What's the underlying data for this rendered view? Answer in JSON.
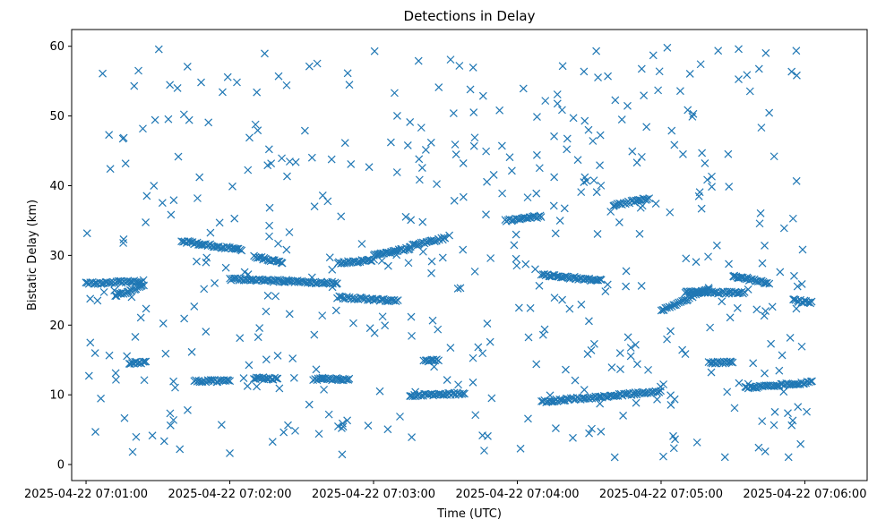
{
  "chart_data": {
    "type": "scatter",
    "title": "Detections in Delay",
    "xlabel": "Time (UTC)",
    "ylabel": "Bistatic Delay (km)",
    "marker": "x",
    "color": "#1f77b4",
    "grid": false,
    "xlim": [
      "2025-04-22 07:00:54",
      "2025-04-22 07:06:26"
    ],
    "ylim": [
      -2.3,
      62.4
    ],
    "xticks": [
      {
        "t": "2025-04-22 07:01:00",
        "label": "2025-04-22 07:01:00"
      },
      {
        "t": "2025-04-22 07:02:00",
        "label": "2025-04-22 07:02:00"
      },
      {
        "t": "2025-04-22 07:03:00",
        "label": "2025-04-22 07:03:00"
      },
      {
        "t": "2025-04-22 07:04:00",
        "label": "2025-04-22 07:04:00"
      },
      {
        "t": "2025-04-22 07:05:00",
        "label": "2025-04-22 07:05:00"
      },
      {
        "t": "2025-04-22 07:06:00",
        "label": "2025-04-22 07:06:00"
      }
    ],
    "yticks": [
      0,
      10,
      20,
      30,
      40,
      50,
      60
    ],
    "tracks": [
      {
        "x_start": "2025-04-22 07:01:00",
        "x_end": "2025-04-22 07:01:24",
        "y_start": 26.0,
        "y_end": 26.3
      },
      {
        "x_start": "2025-04-22 07:01:12",
        "x_end": "2025-04-22 07:01:24",
        "y_start": 24.2,
        "y_end": 25.6
      },
      {
        "x_start": "2025-04-22 07:01:18",
        "x_end": "2025-04-22 07:01:25",
        "y_start": 14.6,
        "y_end": 14.6
      },
      {
        "x_start": "2025-04-22 07:01:40",
        "x_end": "2025-04-22 07:02:05",
        "y_start": 32.0,
        "y_end": 30.8
      },
      {
        "x_start": "2025-04-22 07:02:10",
        "x_end": "2025-04-22 07:02:22",
        "y_start": 29.8,
        "y_end": 29.0
      },
      {
        "x_start": "2025-04-22 07:01:45",
        "x_end": "2025-04-22 07:02:00",
        "y_start": 12.0,
        "y_end": 12.0
      },
      {
        "x_start": "2025-04-22 07:02:10",
        "x_end": "2025-04-22 07:02:20",
        "y_start": 12.4,
        "y_end": 12.3
      },
      {
        "x_start": "2025-04-22 07:02:35",
        "x_end": "2025-04-22 07:02:50",
        "y_start": 12.3,
        "y_end": 12.2
      },
      {
        "x_start": "2025-04-22 07:02:00",
        "x_end": "2025-04-22 07:02:45",
        "y_start": 26.6,
        "y_end": 26.0
      },
      {
        "x_start": "2025-04-22 07:02:45",
        "x_end": "2025-04-22 07:03:00",
        "y_start": 28.9,
        "y_end": 29.3
      },
      {
        "x_start": "2025-04-22 07:02:45",
        "x_end": "2025-04-22 07:03:10",
        "y_start": 24.0,
        "y_end": 23.5
      },
      {
        "x_start": "2025-04-22 07:03:00",
        "x_end": "2025-04-22 07:03:15",
        "y_start": 30.0,
        "y_end": 31.0
      },
      {
        "x_start": "2025-04-22 07:03:15",
        "x_end": "2025-04-22 07:03:30",
        "y_start": 31.3,
        "y_end": 32.5
      },
      {
        "x_start": "2025-04-22 07:03:15",
        "x_end": "2025-04-22 07:03:38",
        "y_start": 9.9,
        "y_end": 10.2
      },
      {
        "x_start": "2025-04-22 07:03:21",
        "x_end": "2025-04-22 07:03:27",
        "y_start": 14.8,
        "y_end": 15.0
      },
      {
        "x_start": "2025-04-22 07:03:55",
        "x_end": "2025-04-22 07:04:10",
        "y_start": 35.0,
        "y_end": 35.6
      },
      {
        "x_start": "2025-04-22 07:04:10",
        "x_end": "2025-04-22 07:05:00",
        "y_start": 9.0,
        "y_end": 10.5
      },
      {
        "x_start": "2025-04-22 07:04:40",
        "x_end": "2025-04-22 07:04:55",
        "y_start": 37.2,
        "y_end": 38.2
      },
      {
        "x_start": "2025-04-22 07:04:10",
        "x_end": "2025-04-22 07:04:35",
        "y_start": 27.2,
        "y_end": 26.4
      },
      {
        "x_start": "2025-04-22 07:05:00",
        "x_end": "2025-04-22 07:05:20",
        "y_start": 22.0,
        "y_end": 25.2
      },
      {
        "x_start": "2025-04-22 07:05:10",
        "x_end": "2025-04-22 07:05:35",
        "y_start": 24.8,
        "y_end": 24.6
      },
      {
        "x_start": "2025-04-22 07:05:20",
        "x_end": "2025-04-22 07:05:30",
        "y_start": 14.6,
        "y_end": 14.7
      },
      {
        "x_start": "2025-04-22 07:05:30",
        "x_end": "2025-04-22 07:05:45",
        "y_start": 27.0,
        "y_end": 26.0
      },
      {
        "x_start": "2025-04-22 07:05:55",
        "x_end": "2025-04-22 07:06:03",
        "y_start": 23.6,
        "y_end": 23.2
      },
      {
        "x_start": "2025-04-22 07:05:35",
        "x_end": "2025-04-22 07:06:03",
        "y_start": 11.0,
        "y_end": 11.8
      }
    ],
    "scatter_background": {
      "count": 460,
      "x_range": [
        "2025-04-22 07:01:00",
        "2025-04-22 07:06:02"
      ],
      "y_range": [
        0.8,
        59.8
      ]
    }
  }
}
